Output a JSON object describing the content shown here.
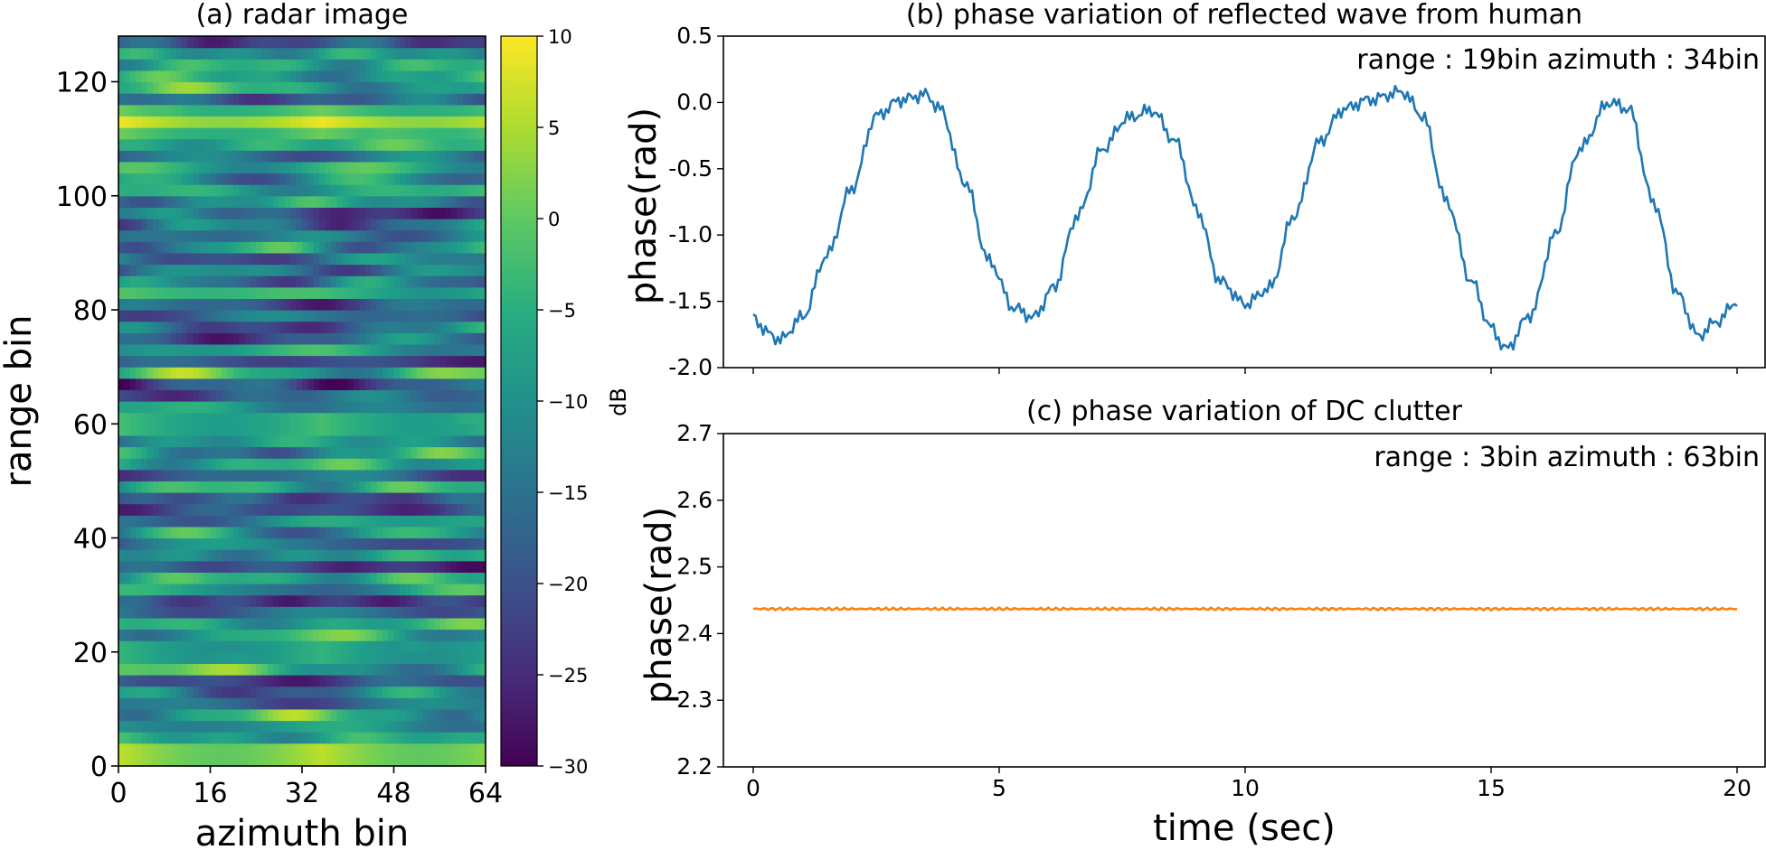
{
  "chart_data": [
    {
      "panel": "a",
      "type": "heatmap",
      "title": "(a) radar image",
      "xlabel": "azimuth bin",
      "ylabel": "range bin",
      "xlim": [
        0,
        64
      ],
      "ylim": [
        0,
        128
      ],
      "xticks": [
        "0",
        "16",
        "32",
        "48",
        "64"
      ],
      "yticks": [
        "0",
        "20",
        "40",
        "60",
        "80",
        "100",
        "120"
      ],
      "colormap": "viridis",
      "colorbar": {
        "label": "dB",
        "range": [
          -30,
          10
        ],
        "ticks": [
          "10",
          "5",
          "0",
          "−5",
          "−10",
          "−15",
          "−20",
          "−25",
          "−30"
        ],
        "tick_values": [
          10,
          5,
          0,
          -5,
          -10,
          -15,
          -20,
          -25,
          -30
        ]
      },
      "grid_shape": [
        64,
        64
      ],
      "bright_bands": [
        {
          "range_bin": 2,
          "level_db": 10
        },
        {
          "range_bin": 113,
          "level_db": 9
        },
        {
          "range_bin": 60,
          "level_db": 2
        },
        {
          "range_bin": 20,
          "level_db": 0
        }
      ]
    },
    {
      "panel": "b",
      "type": "line",
      "title": "(b) phase variation of reflected wave from human",
      "ylabel": "phase(rad)",
      "annotation": "range : 19bin azimuth : 34bin",
      "xlim": [
        0,
        20
      ],
      "ylim": [
        -2.0,
        0.5
      ],
      "yticks": [
        "0.5",
        "0.0",
        "-0.5",
        "-1.0",
        "-1.5",
        "-2.0"
      ],
      "tick_values": [
        0.5,
        0.0,
        -0.5,
        -1.0,
        -1.5,
        -2.0
      ],
      "color": "#1f77b4",
      "series_points": [
        [
          0.0,
          -1.62
        ],
        [
          0.3,
          -1.74
        ],
        [
          0.55,
          -1.79
        ],
        [
          1.0,
          -1.62
        ],
        [
          1.5,
          -1.15
        ],
        [
          2.0,
          -0.65
        ],
        [
          2.5,
          -0.1
        ],
        [
          3.0,
          0.02
        ],
        [
          3.5,
          0.06
        ],
        [
          3.8,
          -0.05
        ],
        [
          4.3,
          -0.6
        ],
        [
          4.8,
          -1.2
        ],
        [
          5.3,
          -1.55
        ],
        [
          5.7,
          -1.62
        ],
        [
          6.1,
          -1.4
        ],
        [
          6.6,
          -0.85
        ],
        [
          7.1,
          -0.35
        ],
        [
          7.6,
          -0.12
        ],
        [
          8.1,
          -0.06
        ],
        [
          8.6,
          -0.3
        ],
        [
          9.0,
          -0.8
        ],
        [
          9.5,
          -1.35
        ],
        [
          10.0,
          -1.52
        ],
        [
          10.5,
          -1.4
        ],
        [
          11.0,
          -0.85
        ],
        [
          11.5,
          -0.3
        ],
        [
          12.0,
          -0.05
        ],
        [
          12.5,
          0.02
        ],
        [
          13.2,
          0.08
        ],
        [
          13.6,
          -0.1
        ],
        [
          14.1,
          -0.75
        ],
        [
          14.6,
          -1.35
        ],
        [
          15.0,
          -1.7
        ],
        [
          15.3,
          -1.86
        ],
        [
          15.8,
          -1.6
        ],
        [
          16.3,
          -1.0
        ],
        [
          16.8,
          -0.35
        ],
        [
          17.4,
          0.0
        ],
        [
          17.8,
          -0.05
        ],
        [
          18.3,
          -0.75
        ],
        [
          18.8,
          -1.45
        ],
        [
          19.2,
          -1.76
        ],
        [
          19.6,
          -1.65
        ],
        [
          20.0,
          -1.5
        ]
      ]
    },
    {
      "panel": "c",
      "type": "line",
      "title": "(c) phase variation of DC clutter",
      "xlabel": "time (sec)",
      "ylabel": "phase(rad)",
      "annotation": "range : 3bin azimuth : 63bin",
      "xlim": [
        0,
        20
      ],
      "ylim": [
        2.2,
        2.7
      ],
      "xticks": [
        "0",
        "5",
        "10",
        "15",
        "20"
      ],
      "x_tick_values": [
        0,
        5,
        10,
        15,
        20
      ],
      "yticks": [
        "2.7",
        "2.6",
        "2.5",
        "2.4",
        "2.3",
        "2.2"
      ],
      "tick_values": [
        2.7,
        2.6,
        2.5,
        2.4,
        2.3,
        2.2
      ],
      "color": "#ff7f0e",
      "mean_value": 2.437
    }
  ]
}
